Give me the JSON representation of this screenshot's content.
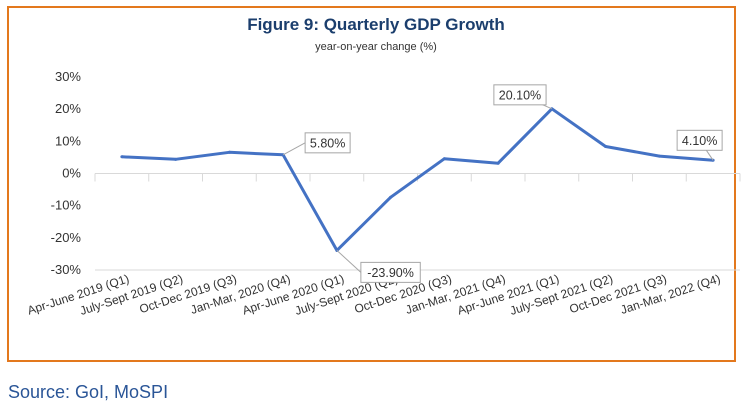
{
  "chart_data": {
    "type": "line",
    "title": "Figure 9: Quarterly GDP Growth",
    "subtitle": "year-on-year change (%)",
    "categories": [
      "Apr-June 2019 (Q1)",
      "July-Sept 2019 (Q2)",
      "Oct-Dec 2019 (Q3)",
      "Jan-Mar, 2020 (Q4)",
      "Apr-June 2020 (Q1)",
      "July-Sept 2020 (Q2)",
      "Oct-Dec 2020 (Q3)",
      "Jan-Mar, 2021 (Q4)",
      "Apr-June 2021 (Q1)",
      "July-Sept 2021 (Q2)",
      "Oct-Dec 2021 (Q3)",
      "Jan-Mar, 2022 (Q4)"
    ],
    "series": [
      {
        "values": [
          5.2,
          4.4,
          6.6,
          5.8,
          -23.9,
          -7.4,
          4.6,
          3.2,
          20.1,
          8.4,
          5.4,
          4.1
        ]
      }
    ],
    "yticks": [
      "30%",
      "20%",
      "10%",
      "0%",
      "-10%",
      "-20%",
      "-30%"
    ],
    "ylim": [
      -30,
      30
    ],
    "annotations": [
      {
        "index": 3,
        "text": "5.80%"
      },
      {
        "index": 4,
        "text": "-23.90%"
      },
      {
        "index": 8,
        "text": "20.10%"
      },
      {
        "index": 11,
        "text": "4.10%"
      }
    ],
    "line_color": "#4472c4",
    "grid": "vertical"
  },
  "source": "Source: GoI, MoSPI",
  "colors": {
    "border": "#e3781d",
    "title": "#1b3e6d",
    "source": "#2a5597"
  }
}
